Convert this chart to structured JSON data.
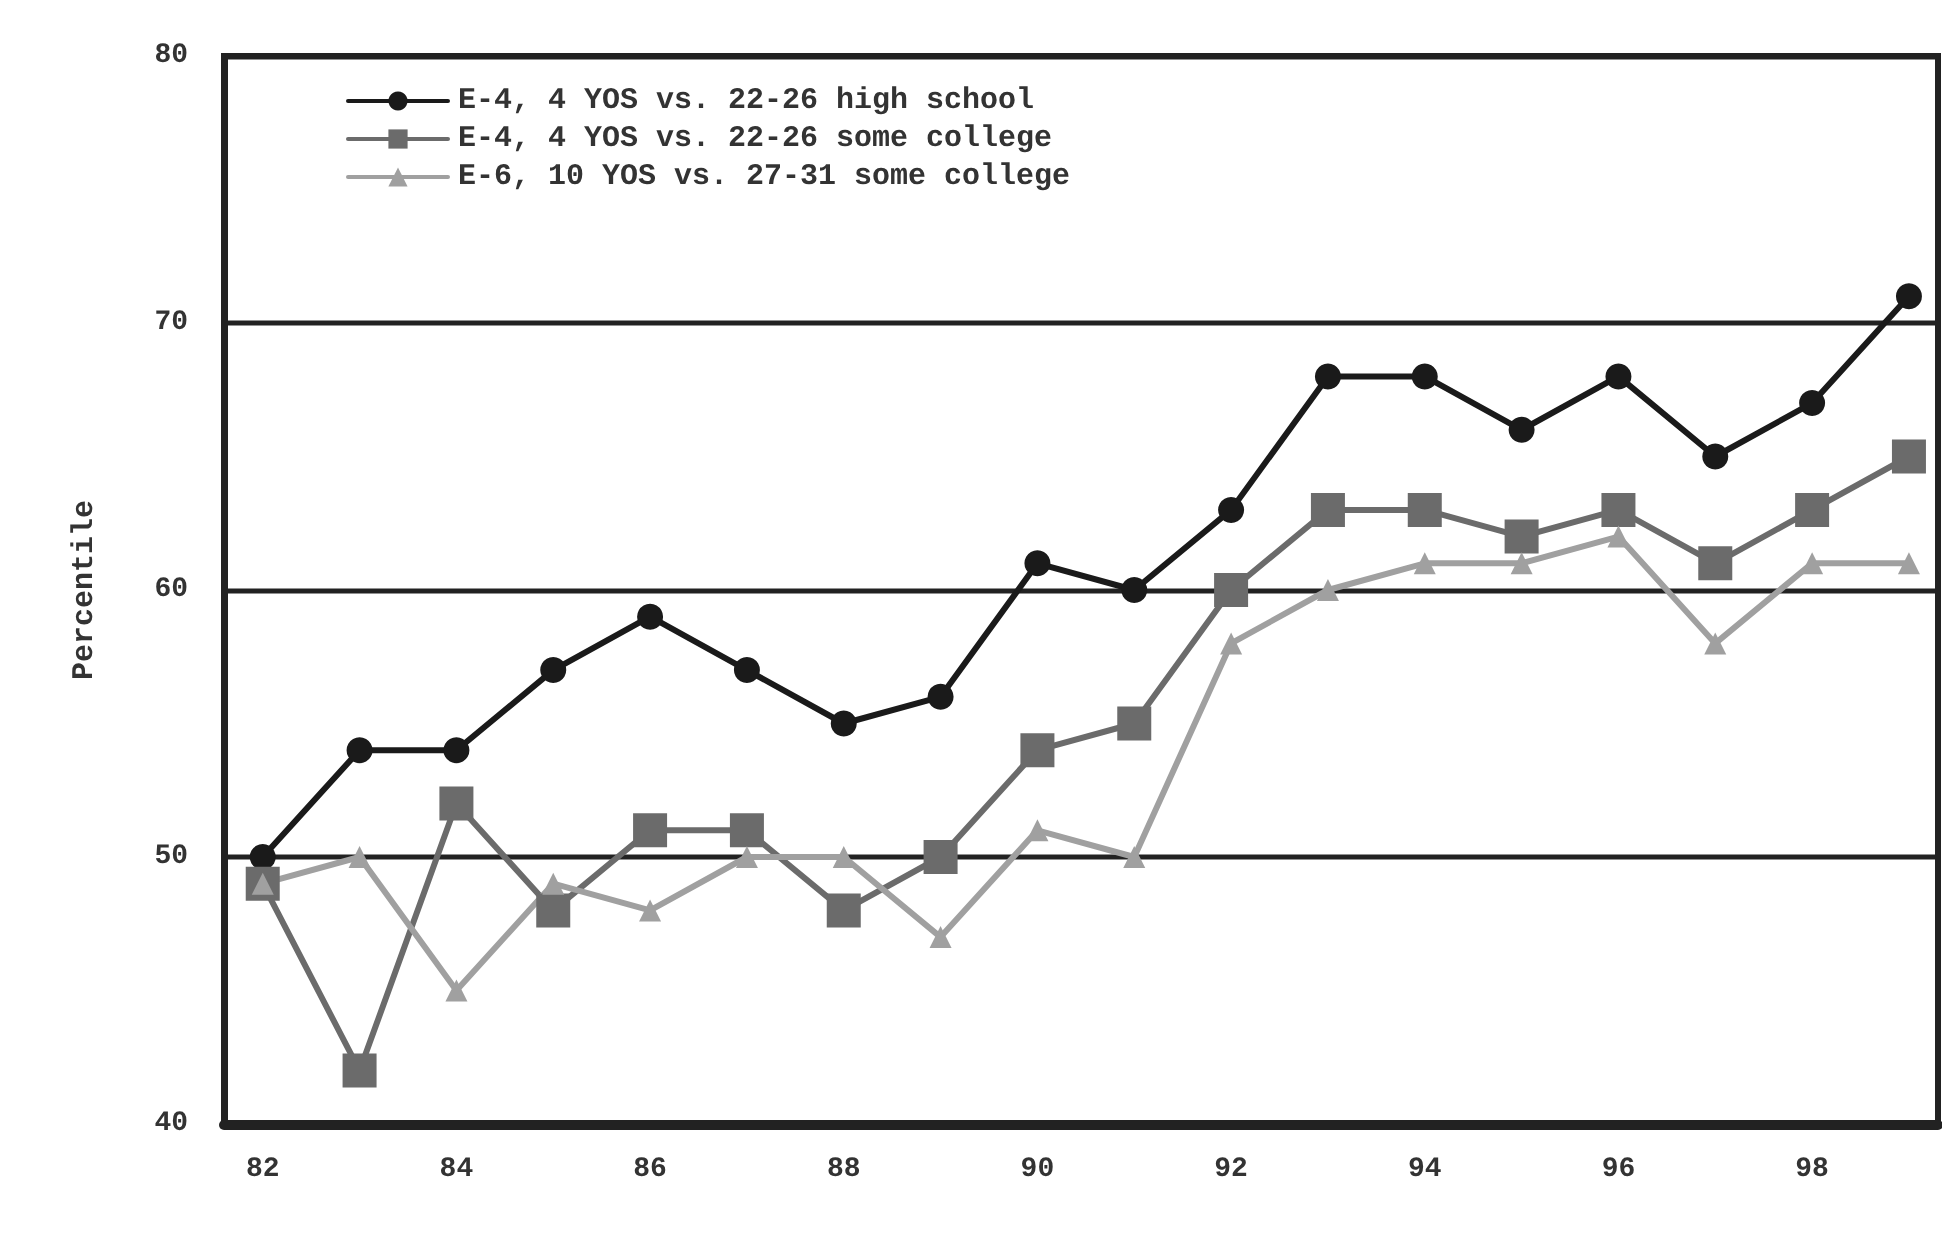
{
  "chart_data": {
    "type": "line",
    "ylabel": "Percentile",
    "x": [
      82,
      83,
      84,
      85,
      86,
      87,
      88,
      89,
      90,
      91,
      92,
      93,
      94,
      95,
      96,
      97,
      98,
      99
    ],
    "series": [
      {
        "name": "E-4, 4 YOS vs. 22-26 high school",
        "color": "#1a1a1a",
        "marker": "circle",
        "values": [
          50,
          54,
          54,
          57,
          59,
          57,
          55,
          56,
          61,
          60,
          63,
          68,
          68,
          66,
          68,
          65,
          67,
          71
        ]
      },
      {
        "name": "E-4, 4 YOS vs. 22-26 some college",
        "color": "#6b6b6b",
        "marker": "square",
        "values": [
          49,
          42,
          52,
          48,
          51,
          51,
          48,
          50,
          54,
          55,
          60,
          63,
          63,
          62,
          63,
          61,
          63,
          65
        ]
      },
      {
        "name": "E-6, 10 YOS vs. 27-31 some college",
        "color": "#a0a0a0",
        "marker": "triangle",
        "values": [
          49,
          50,
          45,
          49,
          48,
          50,
          50,
          47,
          51,
          50,
          58,
          60,
          61,
          61,
          62,
          58,
          61,
          61
        ]
      }
    ],
    "xlim": [
      81.6,
      99.3
    ],
    "xticks": [
      82,
      84,
      86,
      88,
      90,
      92,
      94,
      96,
      98
    ],
    "ylim": [
      40,
      80
    ],
    "yticks": [
      40,
      50,
      60,
      70,
      80
    ],
    "grid": "y",
    "legend": "top left",
    "line_style": "solid"
  }
}
